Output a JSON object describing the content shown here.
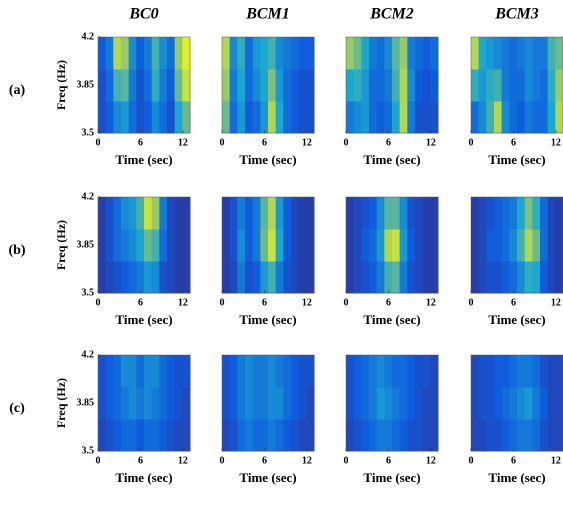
{
  "chart_data": [
    {
      "type": "heatmap",
      "title": "BC0",
      "row_label": "(a)",
      "ylabel": "Freq (Hz)",
      "xlabel": "Time (sec)",
      "xlim": [
        0,
        13
      ],
      "xticks": [
        0,
        6,
        12
      ],
      "ylim": [
        3.5,
        4.2
      ],
      "yticks": [
        3.5,
        3.85,
        4.2
      ],
      "zlim": [
        0,
        1
      ],
      "colormap": [
        "#352a87",
        "#0f5cdd",
        "#1aa8d0",
        "#7fbf7b",
        "#f9fb0e"
      ],
      "z": [
        [
          0.2,
          0.25,
          0.4,
          0.45,
          0.3,
          0.2,
          0.25,
          0.4,
          0.3,
          0.2,
          0.5,
          0.7
        ],
        [
          0.2,
          0.3,
          0.6,
          0.65,
          0.35,
          0.2,
          0.3,
          0.55,
          0.35,
          0.25,
          0.7,
          0.9
        ],
        [
          0.25,
          0.35,
          0.85,
          0.8,
          0.4,
          0.25,
          0.35,
          0.6,
          0.4,
          0.3,
          0.8,
          0.95
        ]
      ]
    },
    {
      "type": "heatmap",
      "title": "BCM1",
      "xlabel": "Time (sec)",
      "xlim": [
        0,
        13
      ],
      "xticks": [
        0,
        6,
        12
      ],
      "ylim": [
        3.5,
        4.2
      ],
      "zlim": [
        0,
        1
      ],
      "colormap": [
        "#352a87",
        "#0f5cdd",
        "#1aa8d0",
        "#7fbf7b",
        "#f9fb0e"
      ],
      "z": [
        [
          0.7,
          0.3,
          0.45,
          0.25,
          0.3,
          0.45,
          0.85,
          0.5,
          0.3,
          0.25,
          0.2,
          0.2
        ],
        [
          0.8,
          0.35,
          0.5,
          0.3,
          0.4,
          0.5,
          0.75,
          0.45,
          0.3,
          0.25,
          0.2,
          0.2
        ],
        [
          0.85,
          0.4,
          0.55,
          0.3,
          0.45,
          0.5,
          0.6,
          0.4,
          0.35,
          0.3,
          0.25,
          0.25
        ]
      ]
    },
    {
      "type": "heatmap",
      "title": "BCM2",
      "xlabel": "Time (sec)",
      "xlim": [
        0,
        13
      ],
      "xticks": [
        0,
        6,
        12
      ],
      "ylim": [
        3.5,
        4.2
      ],
      "zlim": [
        0,
        1
      ],
      "colormap": [
        "#352a87",
        "#0f5cdd",
        "#1aa8d0",
        "#7fbf7b",
        "#f9fb0e"
      ],
      "z": [
        [
          0.35,
          0.4,
          0.45,
          0.3,
          0.25,
          0.3,
          0.5,
          0.85,
          0.35,
          0.2,
          0.2,
          0.2
        ],
        [
          0.5,
          0.55,
          0.45,
          0.3,
          0.3,
          0.35,
          0.6,
          0.85,
          0.4,
          0.25,
          0.2,
          0.25
        ],
        [
          0.8,
          0.7,
          0.5,
          0.35,
          0.3,
          0.4,
          0.65,
          0.8,
          0.35,
          0.3,
          0.25,
          0.3
        ]
      ]
    },
    {
      "type": "heatmap",
      "title": "BCM3",
      "xlabel": "Time (sec)",
      "xlim": [
        0,
        13
      ],
      "xticks": [
        0,
        6,
        12
      ],
      "ylim": [
        3.5,
        4.2
      ],
      "zlim": [
        0,
        1
      ],
      "colormap": [
        "#352a87",
        "#0f5cdd",
        "#1aa8d0",
        "#7fbf7b",
        "#f9fb0e"
      ],
      "z": [
        [
          0.3,
          0.4,
          0.6,
          0.85,
          0.4,
          0.3,
          0.25,
          0.35,
          0.3,
          0.3,
          0.5,
          0.85
        ],
        [
          0.55,
          0.45,
          0.55,
          0.6,
          0.35,
          0.3,
          0.3,
          0.4,
          0.35,
          0.3,
          0.55,
          0.8
        ],
        [
          0.85,
          0.5,
          0.45,
          0.4,
          0.35,
          0.3,
          0.35,
          0.4,
          0.35,
          0.35,
          0.6,
          0.7
        ]
      ]
    },
    {
      "type": "heatmap",
      "row_label": "(b)",
      "ylabel": "Freq (Hz)",
      "xlabel": "Time (sec)",
      "xlim": [
        0,
        13
      ],
      "xticks": [
        0,
        6,
        12
      ],
      "ylim": [
        3.5,
        4.2
      ],
      "yticks": [
        3.5,
        3.85,
        4.2
      ],
      "zlim": [
        0,
        1
      ],
      "colormap": [
        "#352a87",
        "#0f5cdd",
        "#1aa8d0",
        "#7fbf7b",
        "#f9fb0e"
      ],
      "z": [
        [
          0.1,
          0.15,
          0.2,
          0.25,
          0.3,
          0.35,
          0.45,
          0.4,
          0.2,
          0.15,
          0.1,
          0.1
        ],
        [
          0.1,
          0.2,
          0.3,
          0.35,
          0.4,
          0.5,
          0.7,
          0.6,
          0.3,
          0.15,
          0.1,
          0.1
        ],
        [
          0.1,
          0.2,
          0.3,
          0.4,
          0.45,
          0.6,
          0.9,
          0.8,
          0.35,
          0.15,
          0.1,
          0.1
        ]
      ]
    },
    {
      "type": "heatmap",
      "xlabel": "Time (sec)",
      "xlim": [
        0,
        13
      ],
      "xticks": [
        0,
        6,
        12
      ],
      "ylim": [
        3.5,
        4.2
      ],
      "zlim": [
        0,
        1
      ],
      "colormap": [
        "#352a87",
        "#0f5cdd",
        "#1aa8d0",
        "#7fbf7b",
        "#f9fb0e"
      ],
      "z": [
        [
          0.1,
          0.15,
          0.35,
          0.2,
          0.25,
          0.45,
          0.6,
          0.35,
          0.2,
          0.15,
          0.1,
          0.1
        ],
        [
          0.1,
          0.2,
          0.4,
          0.25,
          0.35,
          0.7,
          0.9,
          0.5,
          0.25,
          0.15,
          0.1,
          0.1
        ],
        [
          0.1,
          0.2,
          0.35,
          0.25,
          0.35,
          0.65,
          0.85,
          0.45,
          0.25,
          0.15,
          0.1,
          0.1
        ]
      ]
    },
    {
      "type": "heatmap",
      "xlabel": "Time (sec)",
      "xlim": [
        0,
        13
      ],
      "xticks": [
        0,
        6,
        12
      ],
      "ylim": [
        3.5,
        4.2
      ],
      "zlim": [
        0,
        1
      ],
      "colormap": [
        "#352a87",
        "#0f5cdd",
        "#1aa8d0",
        "#7fbf7b",
        "#f9fb0e"
      ],
      "z": [
        [
          0.1,
          0.15,
          0.2,
          0.25,
          0.35,
          0.6,
          0.65,
          0.35,
          0.2,
          0.15,
          0.1,
          0.1
        ],
        [
          0.1,
          0.15,
          0.25,
          0.3,
          0.45,
          0.85,
          0.9,
          0.45,
          0.25,
          0.15,
          0.1,
          0.1
        ],
        [
          0.1,
          0.15,
          0.2,
          0.25,
          0.4,
          0.65,
          0.65,
          0.4,
          0.2,
          0.15,
          0.1,
          0.1
        ]
      ]
    },
    {
      "type": "heatmap",
      "xlabel": "Time (sec)",
      "xlim": [
        0,
        13
      ],
      "xticks": [
        0,
        6,
        12
      ],
      "ylim": [
        3.5,
        4.2
      ],
      "zlim": [
        0,
        1
      ],
      "colormap": [
        "#352a87",
        "#0f5cdd",
        "#1aa8d0",
        "#7fbf7b",
        "#f9fb0e"
      ],
      "z": [
        [
          0.1,
          0.15,
          0.2,
          0.2,
          0.25,
          0.3,
          0.4,
          0.55,
          0.5,
          0.25,
          0.15,
          0.1
        ],
        [
          0.1,
          0.15,
          0.25,
          0.25,
          0.3,
          0.4,
          0.6,
          0.85,
          0.7,
          0.3,
          0.15,
          0.1
        ],
        [
          0.1,
          0.15,
          0.2,
          0.25,
          0.3,
          0.35,
          0.5,
          0.75,
          0.55,
          0.3,
          0.15,
          0.1
        ]
      ]
    },
    {
      "type": "heatmap",
      "row_label": "(c)",
      "ylabel": "Freq (Hz)",
      "xlabel": "Time (sec)",
      "xlim": [
        0,
        13
      ],
      "xticks": [
        0,
        6,
        12
      ],
      "ylim": [
        3.5,
        4.2
      ],
      "yticks": [
        3.5,
        3.85,
        4.2
      ],
      "zlim": [
        0,
        1
      ],
      "colormap": [
        "#352a87",
        "#0f5cdd",
        "#1aa8d0",
        "#7fbf7b",
        "#f9fb0e"
      ],
      "z": [
        [
          0.15,
          0.2,
          0.25,
          0.3,
          0.3,
          0.25,
          0.3,
          0.3,
          0.25,
          0.2,
          0.15,
          0.15
        ],
        [
          0.2,
          0.25,
          0.3,
          0.35,
          0.4,
          0.35,
          0.4,
          0.35,
          0.3,
          0.25,
          0.2,
          0.15
        ],
        [
          0.2,
          0.25,
          0.3,
          0.4,
          0.4,
          0.3,
          0.4,
          0.4,
          0.3,
          0.25,
          0.2,
          0.2
        ]
      ]
    },
    {
      "type": "heatmap",
      "xlabel": "Time (sec)",
      "xlim": [
        0,
        13
      ],
      "xticks": [
        0,
        6,
        12
      ],
      "ylim": [
        3.5,
        4.2
      ],
      "zlim": [
        0,
        1
      ],
      "colormap": [
        "#352a87",
        "#0f5cdd",
        "#1aa8d0",
        "#7fbf7b",
        "#f9fb0e"
      ],
      "z": [
        [
          0.15,
          0.2,
          0.3,
          0.35,
          0.3,
          0.3,
          0.35,
          0.3,
          0.25,
          0.2,
          0.15,
          0.15
        ],
        [
          0.2,
          0.25,
          0.35,
          0.4,
          0.35,
          0.35,
          0.4,
          0.4,
          0.3,
          0.25,
          0.2,
          0.15
        ],
        [
          0.2,
          0.25,
          0.35,
          0.4,
          0.35,
          0.35,
          0.4,
          0.35,
          0.3,
          0.25,
          0.2,
          0.2
        ]
      ]
    },
    {
      "type": "heatmap",
      "xlabel": "Time (sec)",
      "xlim": [
        0,
        13
      ],
      "xticks": [
        0,
        6,
        12
      ],
      "ylim": [
        3.5,
        4.2
      ],
      "zlim": [
        0,
        1
      ],
      "colormap": [
        "#352a87",
        "#0f5cdd",
        "#1aa8d0",
        "#7fbf7b",
        "#f9fb0e"
      ],
      "z": [
        [
          0.15,
          0.2,
          0.25,
          0.3,
          0.35,
          0.35,
          0.3,
          0.25,
          0.2,
          0.2,
          0.15,
          0.15
        ],
        [
          0.2,
          0.25,
          0.3,
          0.35,
          0.45,
          0.4,
          0.35,
          0.3,
          0.25,
          0.2,
          0.15,
          0.15
        ],
        [
          0.2,
          0.25,
          0.3,
          0.35,
          0.4,
          0.35,
          0.3,
          0.3,
          0.25,
          0.2,
          0.2,
          0.15
        ]
      ]
    },
    {
      "type": "heatmap",
      "xlabel": "Time (sec)",
      "xlim": [
        0,
        13
      ],
      "xticks": [
        0,
        6,
        12
      ],
      "ylim": [
        3.5,
        4.2
      ],
      "zlim": [
        0,
        1
      ],
      "colormap": [
        "#352a87",
        "#0f5cdd",
        "#1aa8d0",
        "#7fbf7b",
        "#f9fb0e"
      ],
      "z": [
        [
          0.15,
          0.15,
          0.2,
          0.2,
          0.25,
          0.3,
          0.35,
          0.35,
          0.3,
          0.2,
          0.15,
          0.15
        ],
        [
          0.15,
          0.2,
          0.2,
          0.25,
          0.3,
          0.35,
          0.4,
          0.45,
          0.35,
          0.25,
          0.15,
          0.15
        ],
        [
          0.15,
          0.2,
          0.2,
          0.25,
          0.25,
          0.3,
          0.35,
          0.35,
          0.3,
          0.2,
          0.15,
          0.15
        ]
      ]
    }
  ]
}
